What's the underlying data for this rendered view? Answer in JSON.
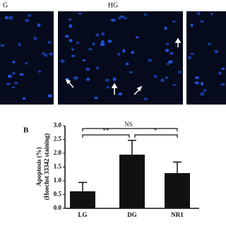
{
  "figure": {
    "image_labels": [
      "G",
      "HG"
    ],
    "panel_label": "B"
  },
  "chart_data": {
    "type": "bar",
    "ylabel": [
      "Apoptosis (%)",
      "(Hoechst 33342 staining)"
    ],
    "categories": [
      "LG",
      "DG",
      "NR1"
    ],
    "values": [
      0.62,
      1.95,
      1.28
    ],
    "errors": [
      0.32,
      0.52,
      0.4
    ],
    "color": "#111111",
    "ylim": [
      0,
      3
    ],
    "yticks": [
      {
        "value": 0,
        "label": "0.0"
      },
      {
        "value": 0.5,
        "label": "0.5"
      },
      {
        "value": 1,
        "label": "1.0"
      },
      {
        "value": 1.5,
        "label": "1.5"
      },
      {
        "value": 2,
        "label": "2.0"
      },
      {
        "value": 2.5,
        "label": "2.5"
      },
      {
        "value": 3,
        "label": "3.0"
      }
    ],
    "annotations": [
      "NS",
      "**",
      "*"
    ]
  }
}
